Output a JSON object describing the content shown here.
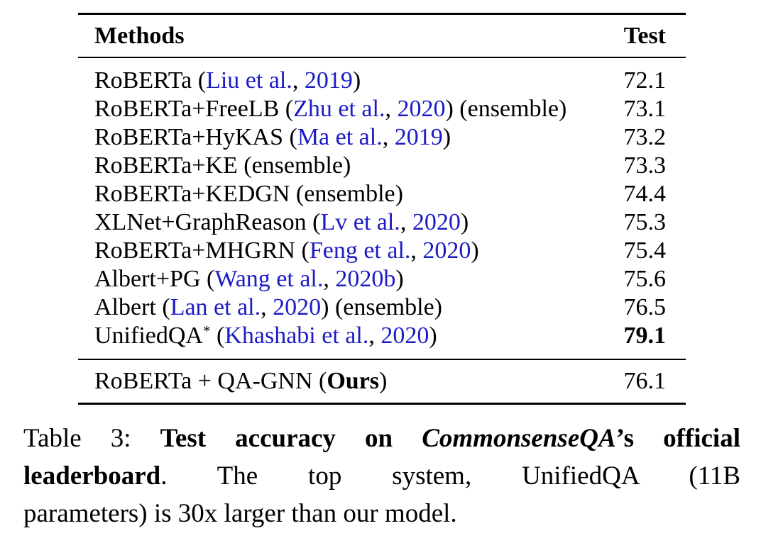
{
  "colors": {
    "background": "#ffffff",
    "text": "#000000",
    "citation_link": "#1c1cc4",
    "rule": "#000000"
  },
  "table": {
    "columns": [
      "Methods",
      "Test"
    ],
    "rows": [
      {
        "method": [
          {
            "t": "RoBERTa ("
          },
          {
            "t": "Liu et al.",
            "c": "link"
          },
          {
            "t": ", "
          },
          {
            "t": "2019",
            "c": "link"
          },
          {
            "t": ")"
          }
        ],
        "test": "72.1",
        "test_bold": false
      },
      {
        "method": [
          {
            "t": "RoBERTa+FreeLB ("
          },
          {
            "t": "Zhu et al.",
            "c": "link"
          },
          {
            "t": ", "
          },
          {
            "t": "2020",
            "c": "link"
          },
          {
            "t": ") (ensemble)"
          }
        ],
        "test": "73.1",
        "test_bold": false
      },
      {
        "method": [
          {
            "t": "RoBERTa+HyKAS ("
          },
          {
            "t": "Ma et al.",
            "c": "link"
          },
          {
            "t": ", "
          },
          {
            "t": "2019",
            "c": "link"
          },
          {
            "t": ")"
          }
        ],
        "test": "73.2",
        "test_bold": false
      },
      {
        "method": [
          {
            "t": "RoBERTa+KE (ensemble)"
          }
        ],
        "test": "73.3",
        "test_bold": false
      },
      {
        "method": [
          {
            "t": "RoBERTa+KEDGN (ensemble)"
          }
        ],
        "test": "74.4",
        "test_bold": false
      },
      {
        "method": [
          {
            "t": "XLNet+GraphReason ("
          },
          {
            "t": "Lv et al.",
            "c": "link"
          },
          {
            "t": ", "
          },
          {
            "t": "2020",
            "c": "link"
          },
          {
            "t": ")"
          }
        ],
        "test": "75.3",
        "test_bold": false
      },
      {
        "method": [
          {
            "t": "RoBERTa+MHGRN ("
          },
          {
            "t": "Feng et al.",
            "c": "link"
          },
          {
            "t": ", "
          },
          {
            "t": "2020",
            "c": "link"
          },
          {
            "t": ")"
          }
        ],
        "test": "75.4",
        "test_bold": false
      },
      {
        "method": [
          {
            "t": "Albert+PG ("
          },
          {
            "t": "Wang et al.",
            "c": "link"
          },
          {
            "t": ", "
          },
          {
            "t": "2020b",
            "c": "link"
          },
          {
            "t": ")"
          }
        ],
        "test": "75.6",
        "test_bold": false
      },
      {
        "method": [
          {
            "t": "Albert ("
          },
          {
            "t": "Lan et al.",
            "c": "link"
          },
          {
            "t": ", "
          },
          {
            "t": "2020",
            "c": "link"
          },
          {
            "t": ") (ensemble)"
          }
        ],
        "test": "76.5",
        "test_bold": false
      },
      {
        "method": [
          {
            "t": "UnifiedQA"
          },
          {
            "t": "*",
            "sup": true
          },
          {
            "t": " ("
          },
          {
            "t": "Khashabi et al.",
            "c": "link"
          },
          {
            "t": ", "
          },
          {
            "t": "2020",
            "c": "link"
          },
          {
            "t": ")"
          }
        ],
        "test": "79.1",
        "test_bold": true
      }
    ],
    "ours_row": {
      "method": [
        {
          "t": "RoBERTa + QA-GNN ("
        },
        {
          "t": "Ours",
          "b": true
        },
        {
          "t": ")"
        }
      ],
      "test": "76.1",
      "test_bold": false
    }
  },
  "caption": {
    "lines": [
      {
        "justify": true,
        "segments": [
          {
            "t": "Table 3: "
          },
          {
            "t": "Test accuracy on ",
            "b": true
          },
          {
            "t": "CommonsenseQA",
            "b": true,
            "i": true
          },
          {
            "t": "’s official",
            "b": true
          }
        ]
      },
      {
        "justify": true,
        "segments": [
          {
            "t": "leaderboard",
            "b": true
          },
          {
            "t": ". The top system, UnifiedQA (11B"
          }
        ]
      },
      {
        "justify": false,
        "segments": [
          {
            "t": "parameters) is 30x larger than our model."
          }
        ]
      }
    ]
  }
}
